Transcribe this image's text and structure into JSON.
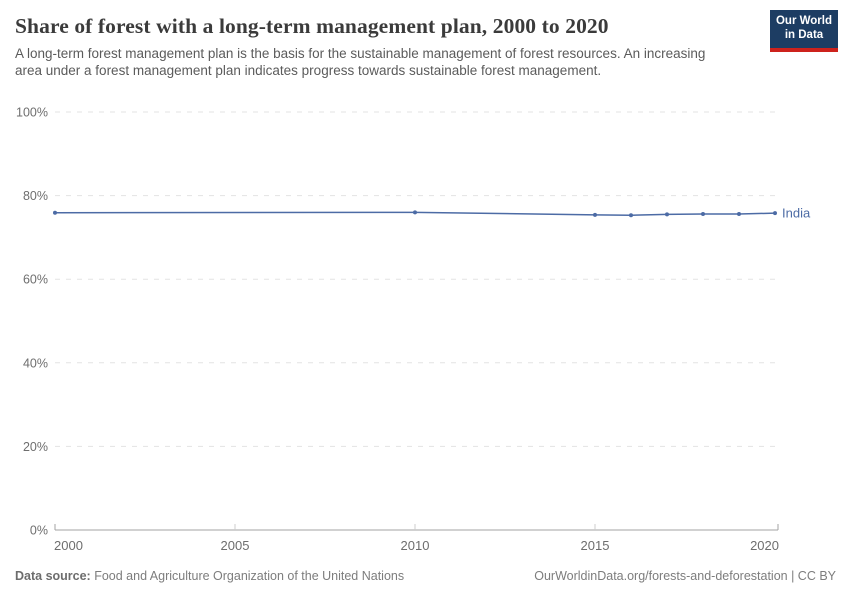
{
  "header": {
    "title": "Share of forest with a long-term management plan, 2000 to 2020",
    "subtitle": "A long-term forest management plan is the basis for the sustainable management of forest resources. An increasing area under a forest management plan indicates progress towards sustainable forest management.",
    "logo": {
      "line1": "Our World",
      "line2": "in Data"
    }
  },
  "footer": {
    "datasource_label": "Data source:",
    "datasource_value": " Food and Agriculture Organization of the United Nations",
    "attribution": "OurWorldinData.org/forests-and-deforestation | CC BY"
  },
  "colors": {
    "title": "#3b3b3b",
    "subtitle": "#5b5b5b",
    "gridline": "#e3e3e3",
    "axis_line": "#a3a3a3",
    "axis_tick": "#cccccc",
    "tick_label": "#6e6e6e",
    "series_blue": "#4c6ba5",
    "logo_bg": "#1d3d63",
    "logo_stripe": "#cd221c",
    "footer_text": "#7d7d7d"
  },
  "chart_data": {
    "type": "line",
    "title": "Share of forest with a long-term management plan, 2000 to 2020",
    "xlabel": "",
    "ylabel": "",
    "ylim": [
      0,
      100
    ],
    "xlim": [
      2000,
      2020
    ],
    "grid": "horizontal-dashed",
    "legend_position": "end-of-line",
    "y_ticks": [
      0,
      20,
      40,
      60,
      80,
      100
    ],
    "y_tick_labels": [
      "0%",
      "20%",
      "40%",
      "60%",
      "80%",
      "100%"
    ],
    "x_ticks": [
      2000,
      2005,
      2010,
      2015,
      2020
    ],
    "x_tick_labels": [
      "2000",
      "2005",
      "2010",
      "2015",
      "2020"
    ],
    "series": [
      {
        "name": "India",
        "color": "#4c6ba5",
        "x": [
          2000,
          2010,
          2015,
          2016,
          2017,
          2018,
          2019,
          2020
        ],
        "values": [
          75.9,
          76.0,
          75.4,
          75.3,
          75.5,
          75.6,
          75.6,
          75.8
        ]
      }
    ]
  }
}
